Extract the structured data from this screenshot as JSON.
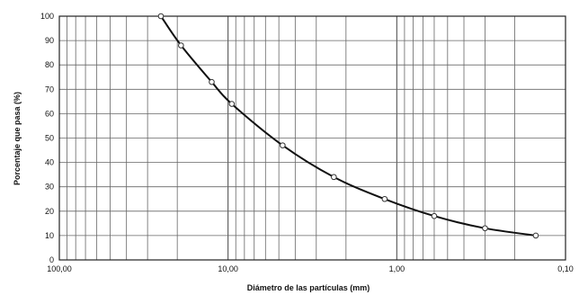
{
  "chart_data": {
    "type": "line",
    "xlabel": "Diámetro de las partículas (mm)",
    "ylabel": "Porcentaje que pasa (%)",
    "x_scale": "log",
    "x_reversed": true,
    "xlim": [
      100,
      0.1
    ],
    "ylim": [
      0,
      100
    ],
    "grid": true,
    "x_tick_labels": [
      "100,00",
      "10,00",
      "1,00",
      "0,10"
    ],
    "x_tick_values": [
      100,
      10,
      1,
      0.1
    ],
    "y_ticks": [
      0,
      10,
      20,
      30,
      40,
      50,
      60,
      70,
      80,
      90,
      100
    ],
    "series": [
      {
        "x": [
          25.0,
          19.0,
          12.5,
          9.5,
          4.75,
          2.36,
          1.18,
          0.6,
          0.3,
          0.15
        ],
        "y": [
          100,
          88,
          73,
          64,
          47,
          34,
          25,
          18,
          13,
          10
        ],
        "line_color": "#111111",
        "marker": "open-circle"
      }
    ]
  }
}
